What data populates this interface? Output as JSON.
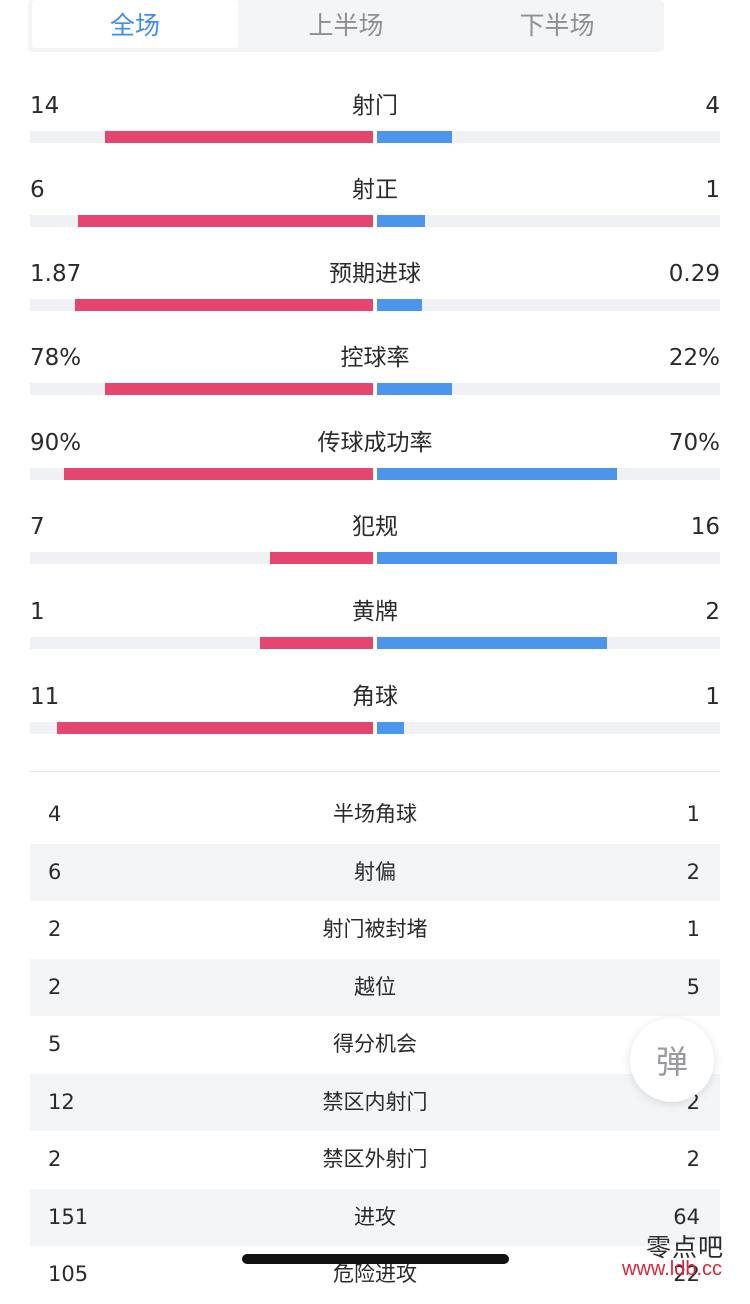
{
  "tabs": [
    {
      "label": "全场",
      "active": true
    },
    {
      "label": "上半场",
      "active": false
    },
    {
      "label": "下半场",
      "active": false
    }
  ],
  "colors": {
    "home": "#e4466f",
    "away": "#4b96ea",
    "tab_active": "#3d8ef0",
    "watermark_url": "#d8263b"
  },
  "bar_stats": [
    {
      "label": "射门",
      "left": "14",
      "right": "4",
      "left_share": 0.78,
      "right_share": 0.22
    },
    {
      "label": "射正",
      "left": "6",
      "right": "1",
      "left_share": 0.86,
      "right_share": 0.14
    },
    {
      "label": "预期进球",
      "left": "1.87",
      "right": "0.29",
      "left_share": 0.87,
      "right_share": 0.13
    },
    {
      "label": "控球率",
      "left": "78%",
      "right": "22%",
      "left_share": 0.78,
      "right_share": 0.22
    },
    {
      "label": "传球成功率",
      "left": "90%",
      "right": "70%",
      "left_share": 0.9,
      "right_share": 0.7
    },
    {
      "label": "犯规",
      "left": "7",
      "right": "16",
      "left_share": 0.3,
      "right_share": 0.7
    },
    {
      "label": "黄牌",
      "left": "1",
      "right": "2",
      "left_share": 0.33,
      "right_share": 0.67
    },
    {
      "label": "角球",
      "left": "11",
      "right": "1",
      "left_share": 0.92,
      "right_share": 0.08
    }
  ],
  "table_stats": [
    {
      "label": "半场角球",
      "left": "4",
      "right": "1"
    },
    {
      "label": "射偏",
      "left": "6",
      "right": "2"
    },
    {
      "label": "射门被封堵",
      "left": "2",
      "right": "1"
    },
    {
      "label": "越位",
      "left": "2",
      "right": "5"
    },
    {
      "label": "得分机会",
      "left": "5",
      "right": ""
    },
    {
      "label": "禁区内射门",
      "left": "12",
      "right": "2"
    },
    {
      "label": "禁区外射门",
      "left": "2",
      "right": "2"
    },
    {
      "label": "进攻",
      "left": "151",
      "right": "64"
    },
    {
      "label": "危险进攻",
      "left": "105",
      "right": "22"
    }
  ],
  "float_button": {
    "label": "弹"
  },
  "watermark": {
    "text": "零点吧",
    "url": "www.ldb.cc"
  }
}
